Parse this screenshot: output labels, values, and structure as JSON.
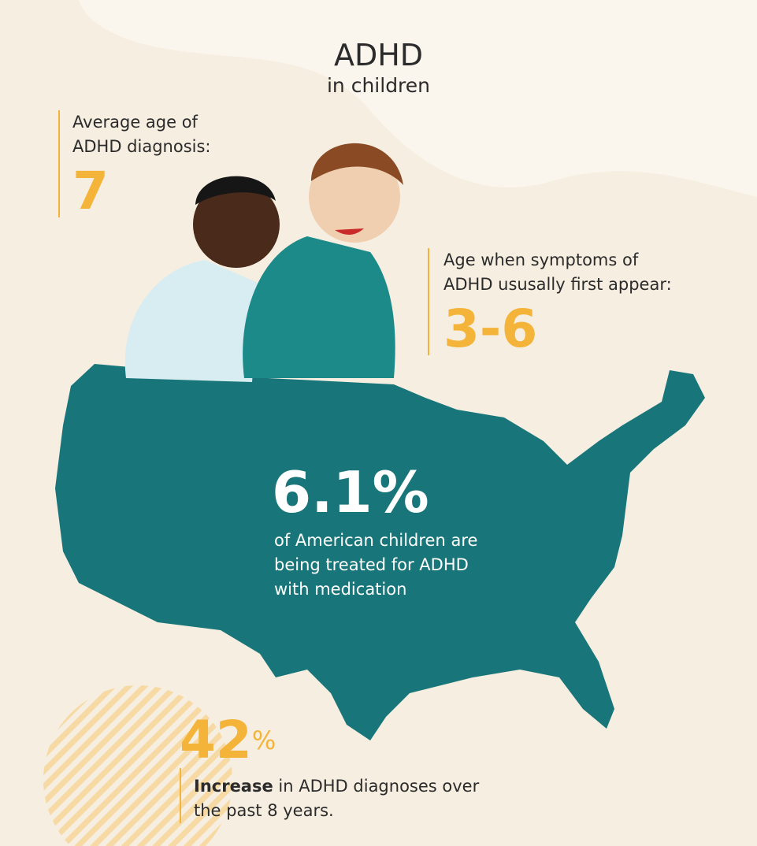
{
  "header": {
    "title": "ADHD",
    "subtitle": "in children"
  },
  "stats": [
    {
      "label_lines": [
        "Average age of",
        "ADHD diagnosis:"
      ],
      "value": "7"
    },
    {
      "label_lines": [
        "Age when symptoms of",
        "ADHD ususally first appear:"
      ],
      "value": "3-6"
    },
    {
      "value": "6.1%",
      "text_lines": [
        "of American children are",
        "being treated for ADHD",
        "with medication"
      ]
    },
    {
      "value": "42",
      "unit": "%",
      "bold": "Increase",
      "text_lines": [
        " in ADHD diagnoses over",
        "the past 8 years."
      ]
    }
  ]
}
